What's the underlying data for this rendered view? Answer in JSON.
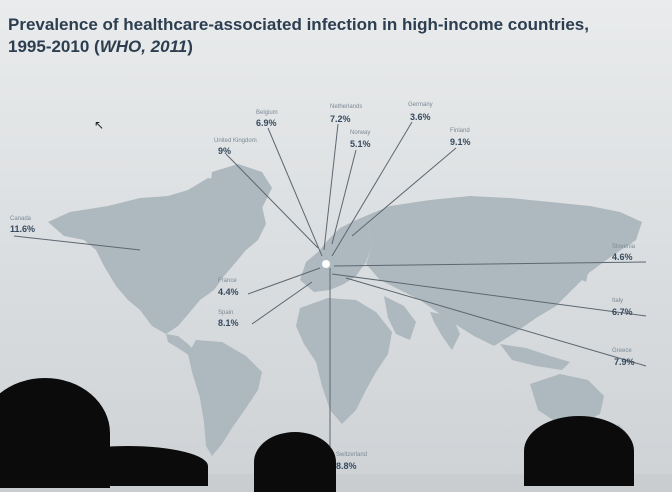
{
  "slide": {
    "title_line1": "Prevalence of healthcare-associated infection in high-income countries,",
    "title_line2_plain": "1995-2010 (",
    "title_line2_italic": "WHO, 2011",
    "title_line2_end": ")"
  },
  "map": {
    "land_color": "#aeb8bf",
    "line_color": "#5d6770",
    "hub_color": "#ffffff"
  },
  "countries": [
    {
      "id": "canada",
      "name": "Canada",
      "value": "11.6%"
    },
    {
      "id": "united-kingdom",
      "name": "United Kingdom",
      "value": "9%"
    },
    {
      "id": "belgium",
      "name": "Belgium",
      "value": "6.9%"
    },
    {
      "id": "netherlands",
      "name": "Netherlands",
      "value": "7.2%"
    },
    {
      "id": "germany",
      "name": "Germany",
      "value": "3.6%"
    },
    {
      "id": "norway",
      "name": "Norway",
      "value": "5.1%"
    },
    {
      "id": "finland",
      "name": "Finland",
      "value": "9.1%"
    },
    {
      "id": "france",
      "name": "France",
      "value": "4.4%"
    },
    {
      "id": "spain",
      "name": "Spain",
      "value": "8.1%"
    },
    {
      "id": "slovenia",
      "name": "Slovenia",
      "value": "4.6%"
    },
    {
      "id": "italy",
      "name": "Italy",
      "value": "6.7%"
    },
    {
      "id": "greece",
      "name": "Greece",
      "value": "7.9%"
    },
    {
      "id": "switzerland",
      "name": "Switzerland",
      "value": "8.8%"
    }
  ]
}
